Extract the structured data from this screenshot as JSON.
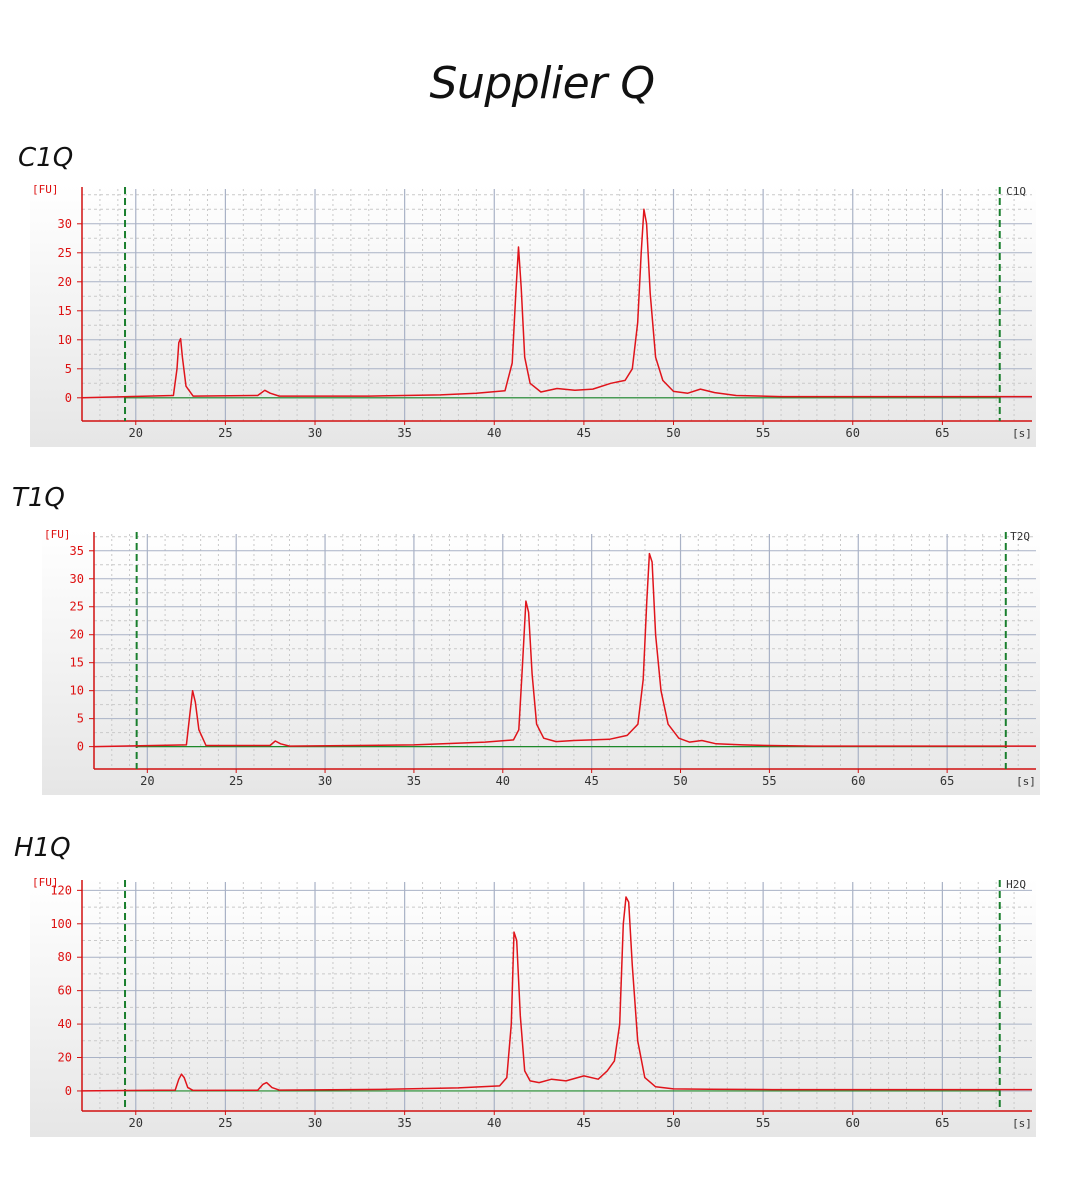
{
  "title": "Supplier Q",
  "colors": {
    "trace": "#e0141b",
    "baseline_green": "#1e8a2a",
    "marker_green": "#1a7f2e",
    "axis_red": "#d11111",
    "major_grid": "#a9b2c6",
    "minor_grid": "#c9c9c9"
  },
  "chart_data": [
    {
      "type": "line",
      "panel_title": "C1Q",
      "sample_label": "C1Q",
      "ylabel": "[FU]",
      "xlabel": "[s]",
      "xlim": [
        17,
        70
      ],
      "ylim": [
        -4,
        36
      ],
      "xticks": [
        20,
        25,
        30,
        35,
        40,
        45,
        50,
        55,
        60,
        65
      ],
      "yticks": [
        0,
        5,
        10,
        15,
        20,
        25,
        30
      ],
      "markers": [
        19.4,
        68.2
      ],
      "series": [
        {
          "x": [
            17,
            22.1,
            22.3,
            22.4,
            22.5,
            22.6,
            22.8,
            23.2,
            26.8,
            27.2,
            27.5,
            28,
            33,
            37,
            39,
            40.6,
            41.0,
            41.2,
            41.35,
            41.5,
            41.7,
            42.0,
            42.6,
            43.5,
            44.5,
            45.5,
            46.5,
            47.3,
            47.7,
            48.0,
            48.2,
            48.35,
            48.5,
            48.7,
            49.0,
            49.4,
            50.0,
            50.8,
            51.5,
            52.3,
            53.5,
            56,
            70
          ],
          "y": [
            0,
            0.4,
            5,
            9.5,
            10.2,
            7,
            2,
            0.3,
            0.4,
            1.3,
            0.8,
            0.3,
            0.3,
            0.5,
            0.8,
            1.2,
            6,
            18,
            26,
            19,
            7,
            2.5,
            1,
            1.6,
            1.3,
            1.5,
            2.5,
            3,
            5,
            13,
            25,
            32.5,
            30,
            18,
            7,
            3,
            1.1,
            0.8,
            1.5,
            0.9,
            0.4,
            0.2,
            0.2
          ]
        }
      ]
    },
    {
      "type": "line",
      "panel_title": "T1Q",
      "sample_label": "T2Q",
      "ylabel": "[FU]",
      "xlabel": "[s]",
      "xlim": [
        17,
        70
      ],
      "ylim": [
        -4,
        38
      ],
      "xticks": [
        20,
        25,
        30,
        35,
        40,
        45,
        50,
        55,
        60,
        65
      ],
      "yticks": [
        0,
        5,
        10,
        15,
        20,
        25,
        30,
        35
      ],
      "markers": [
        19.4,
        68.3
      ],
      "series": [
        {
          "x": [
            17,
            22.2,
            22.4,
            22.55,
            22.7,
            22.9,
            23.3,
            26.9,
            27.2,
            27.5,
            28,
            35,
            39,
            40.6,
            40.9,
            41.1,
            41.3,
            41.45,
            41.65,
            41.9,
            42.3,
            43,
            44,
            45,
            46,
            47,
            47.6,
            47.9,
            48.1,
            48.25,
            48.4,
            48.6,
            48.9,
            49.3,
            49.9,
            50.5,
            51.2,
            52,
            53.5,
            55,
            57.5,
            70
          ],
          "y": [
            0,
            0.3,
            6,
            10,
            8,
            3,
            0.2,
            0.2,
            1,
            0.5,
            0.1,
            0.3,
            0.8,
            1.2,
            3,
            14,
            26,
            24,
            13,
            4,
            1.5,
            0.9,
            1.1,
            1.2,
            1.3,
            2,
            4,
            12,
            26,
            34.5,
            33,
            20,
            10,
            4,
            1.5,
            0.8,
            1.1,
            0.5,
            0.3,
            0.2,
            0.1,
            0.1
          ]
        }
      ]
    },
    {
      "type": "line",
      "panel_title": "H1Q",
      "sample_label": "H2Q",
      "ylabel": "[FU]",
      "xlabel": "[s]",
      "xlim": [
        17,
        70
      ],
      "ylim": [
        -12,
        125
      ],
      "xticks": [
        20,
        25,
        30,
        35,
        40,
        45,
        50,
        55,
        60,
        65
      ],
      "yticks": [
        0,
        20,
        40,
        60,
        80,
        100,
        120
      ],
      "markers": [
        19.4,
        68.2
      ],
      "series": [
        {
          "x": [
            17,
            22.2,
            22.4,
            22.55,
            22.7,
            22.9,
            23.2,
            26.8,
            27.1,
            27.3,
            27.6,
            28,
            34,
            38,
            40.3,
            40.7,
            40.95,
            41.1,
            41.25,
            41.45,
            41.7,
            42,
            42.5,
            43.2,
            44,
            45,
            45.8,
            46.3,
            46.7,
            47.0,
            47.2,
            47.35,
            47.5,
            47.7,
            48.0,
            48.4,
            49,
            50,
            52,
            55.5,
            70
          ],
          "y": [
            0,
            0.5,
            7,
            10,
            8,
            2,
            0.3,
            0.4,
            4,
            5,
            2,
            0.5,
            1,
            1.8,
            3,
            8,
            40,
            95,
            90,
            45,
            12,
            6,
            5,
            7,
            6,
            9,
            7,
            12,
            18,
            40,
            100,
            116,
            113,
            75,
            30,
            8,
            2.5,
            1.2,
            1,
            0.8,
            0.8
          ]
        }
      ]
    }
  ]
}
